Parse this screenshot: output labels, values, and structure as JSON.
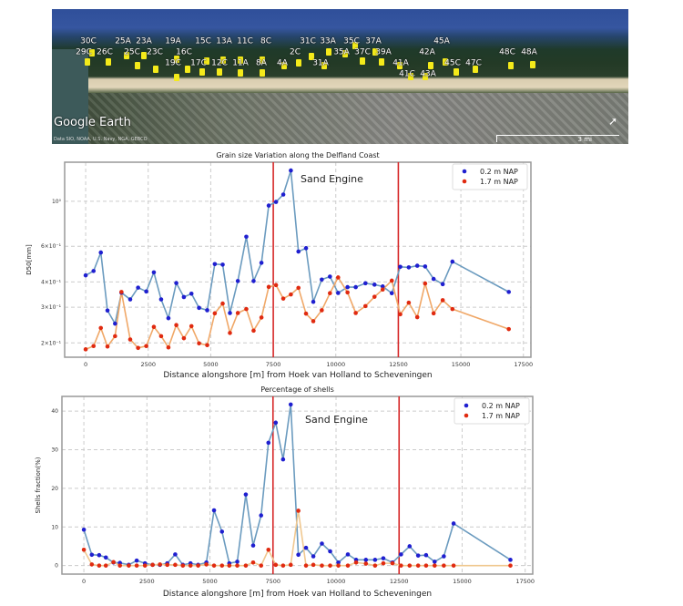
{
  "map": {
    "brand": "Google Earth",
    "credit": "Data SIO, NOAA, U.S. Navy, NGA, GEBCO",
    "scale": "3 mi",
    "north_icon": "compass-north-icon",
    "station_labels": [
      "30C",
      "29C",
      "26C",
      "25A",
      "23A",
      "25C",
      "23C",
      "19A",
      "19C",
      "16C",
      "15C",
      "13A",
      "11C",
      "17C",
      "12C",
      "11A",
      "8C",
      "8A",
      "4A",
      "2C",
      "31C",
      "33A",
      "31A",
      "35C",
      "35A",
      "37A",
      "37C",
      "39A",
      "41A",
      "41C",
      "43A",
      "42A",
      "45A",
      "45C",
      "47C",
      "48C",
      "48A"
    ]
  },
  "chart_data": [
    {
      "type": "line",
      "title": "Grain size Variation along the Delfland Coast",
      "xlabel": "Distance alongshore [m] from Hoek van Holland to Scheveningen",
      "ylabel": "D50[mm]",
      "yscale": "log",
      "xlim": [
        -840,
        17800
      ],
      "ylim": [
        0.17,
        1.56
      ],
      "xticks": [
        0,
        2500,
        5000,
        7500,
        10000,
        12500,
        15000,
        17500
      ],
      "yticks": [
        {
          "v": 1.0,
          "label": "10⁰"
        },
        {
          "v": 0.6,
          "label": "6×10⁻¹"
        },
        {
          "v": 0.4,
          "label": "4×10⁻¹"
        },
        {
          "v": 0.3,
          "label": "3×10⁻¹"
        },
        {
          "v": 0.2,
          "label": "2×10⁻¹"
        }
      ],
      "grid": true,
      "legend_position": "top-right",
      "vlines": [
        7500,
        12500
      ],
      "vline_color": "#d62728",
      "annotation": "Sand Engine",
      "x": [
        0,
        315,
        606,
        872,
        1175,
        1430,
        1781,
        2096,
        2423,
        2726,
        3017,
        3308,
        3623,
        3926,
        4229,
        4532,
        4859,
        5162,
        5477,
        5768,
        6083,
        6422,
        6713,
        7028,
        7319,
        7609,
        7900,
        8203,
        8506,
        8809,
        9100,
        9439,
        9766,
        10093,
        10469,
        10796,
        11184,
        11547,
        11875,
        12238,
        12577,
        12917,
        13256,
        13571,
        13910,
        14274,
        14662,
        16915
      ],
      "series": [
        {
          "name": "0.2 m NAP",
          "marker_color": "#1f1fd0",
          "line_color": "#6b9bbf",
          "values": [
            0.431,
            0.453,
            0.559,
            0.289,
            0.249,
            0.354,
            0.328,
            0.375,
            0.359,
            0.446,
            0.328,
            0.265,
            0.395,
            0.337,
            0.35,
            0.298,
            0.29,
            0.49,
            0.487,
            0.281,
            0.404,
            0.669,
            0.404,
            0.497,
            0.953,
            0.993,
            1.08,
            1.42,
            0.565,
            0.587,
            0.319,
            0.411,
            0.425,
            0.353,
            0.377,
            0.377,
            0.394,
            0.388,
            0.38,
            0.352,
            0.475,
            0.472,
            0.481,
            0.477,
            0.414,
            0.39,
            0.504,
            0.357
          ]
        },
        {
          "name": "1.7 m NAP",
          "marker_color": "#e02a10",
          "line_color": "#f0a868",
          "values": [
            0.186,
            0.193,
            0.237,
            0.192,
            0.216,
            0.357,
            0.208,
            0.189,
            0.193,
            0.24,
            0.216,
            0.19,
            0.245,
            0.211,
            0.242,
            0.199,
            0.195,
            0.28,
            0.313,
            0.224,
            0.281,
            0.294,
            0.23,
            0.267,
            0.378,
            0.386,
            0.331,
            0.347,
            0.374,
            0.279,
            0.256,
            0.29,
            0.352,
            0.421,
            0.355,
            0.281,
            0.304,
            0.338,
            0.367,
            0.406,
            0.277,
            0.316,
            0.268,
            0.393,
            0.28,
            0.325,
            0.294,
            0.234
          ]
        }
      ]
    },
    {
      "type": "line",
      "title": "Percentage of shells",
      "xlabel": "Distance alongshore [m] from Hoek van Holland to Scheveningen",
      "ylabel": "Shells fraction(%)",
      "yscale": "linear",
      "xlim": [
        -870,
        17800
      ],
      "ylim": [
        -2.2,
        43.8
      ],
      "xticks": [
        0,
        2500,
        5000,
        7500,
        10000,
        12500,
        15000,
        17500
      ],
      "yticks": [
        {
          "v": 0,
          "label": "0"
        },
        {
          "v": 10,
          "label": "10"
        },
        {
          "v": 20,
          "label": "20"
        },
        {
          "v": 30,
          "label": "30"
        },
        {
          "v": 40,
          "label": "40"
        }
      ],
      "grid": true,
      "legend_position": "top-right",
      "vlines": [
        7500,
        12500
      ],
      "vline_color": "#d62728",
      "annotation": "Sand Engine",
      "x": [
        0,
        315,
        606,
        872,
        1175,
        1430,
        1781,
        2096,
        2423,
        2726,
        3017,
        3308,
        3623,
        3926,
        4229,
        4532,
        4859,
        5162,
        5477,
        5768,
        6083,
        6422,
        6713,
        7028,
        7319,
        7609,
        7900,
        8203,
        8506,
        8809,
        9100,
        9439,
        9766,
        10093,
        10469,
        10796,
        11184,
        11547,
        11875,
        12238,
        12577,
        12917,
        13256,
        13571,
        13910,
        14274,
        14662,
        16915
      ],
      "series": [
        {
          "name": "0.2 m NAP",
          "marker_color": "#1f1fd0",
          "line_color": "#6b9bbf",
          "values": [
            9.3,
            2.8,
            2.7,
            2.1,
            0.8,
            0.7,
            0.2,
            1.3,
            0.6,
            0.2,
            0.2,
            0.6,
            2.9,
            0.2,
            0.6,
            0.2,
            0.8,
            14.3,
            8.8,
            0.6,
            1.0,
            18.4,
            5.2,
            13.0,
            31.8,
            37.0,
            27.5,
            41.7,
            2.8,
            4.6,
            2.4,
            5.7,
            3.7,
            0.8,
            2.9,
            1.5,
            1.5,
            1.5,
            1.9,
            0.8,
            2.9,
            5.0,
            2.6,
            2.7,
            1.0,
            2.4,
            10.9,
            1.5
          ]
        },
        {
          "name": "1.7 m NAP",
          "marker_color": "#e02a10",
          "line_color": "#f0c890",
          "values": [
            4.1,
            0.3,
            0,
            0,
            0.9,
            0,
            0,
            0,
            0,
            0.2,
            0.3,
            0.2,
            0.2,
            0,
            0,
            0,
            0.3,
            0,
            0,
            0,
            0,
            0,
            0.8,
            0,
            4.1,
            0.2,
            0,
            0.2,
            14.2,
            0,
            0.2,
            0,
            0,
            0,
            0,
            0.8,
            0.5,
            0,
            0.6,
            0.6,
            0,
            0,
            0,
            0,
            0,
            0,
            0,
            0
          ]
        }
      ]
    }
  ]
}
